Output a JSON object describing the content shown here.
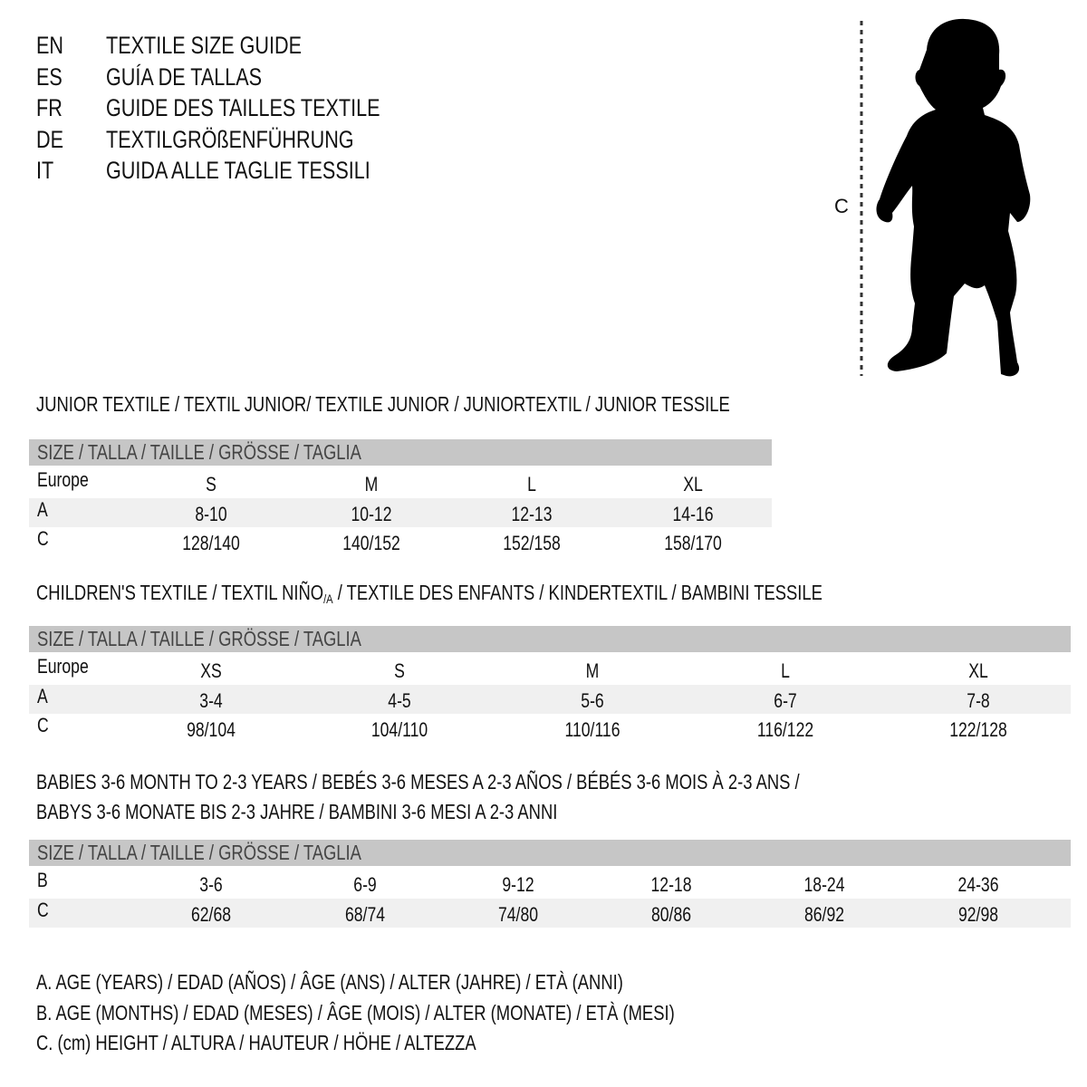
{
  "header": {
    "languages": [
      {
        "code": "EN",
        "title": "TEXTILE SIZE GUIDE"
      },
      {
        "code": "ES",
        "title": "GUÍA DE TALLAS"
      },
      {
        "code": "FR",
        "title": "GUIDE DES TAILLES TEXTILE"
      },
      {
        "code": "DE",
        "title": "TEXTILGRÖßENFÜHRUNG"
      },
      {
        "code": "IT",
        "title": "GUIDA ALLE TAGLIE TESSILI"
      }
    ]
  },
  "figure": {
    "measure_label": "C",
    "icon": "child-silhouette"
  },
  "colors": {
    "header_row": "#c6c6c6",
    "alt_row": "#f0f0f0",
    "text": "#111111"
  },
  "sections": [
    {
      "title": "JUNIOR TEXTILE / TEXTIL JUNIOR/ TEXTILE JUNIOR / JUNIORTEXTIL / JUNIOR TESSILE",
      "size_header": "SIZE / TALLA / TAILLE / GRÖSSE / TAGLIA",
      "rows": [
        {
          "label": "Europe",
          "values": [
            "S",
            "M",
            "L",
            "XL"
          ]
        },
        {
          "label": "A",
          "values": [
            "8-10",
            "10-12",
            "12-13",
            "14-16"
          ]
        },
        {
          "label": "C",
          "values": [
            "128/140",
            "140/152",
            "152/158",
            "158/170"
          ]
        }
      ]
    },
    {
      "title_parts": [
        "CHILDREN'S TEXTILE / TEXTIL NIÑO",
        "/A",
        " / TEXTILE DES ENFANTS / KINDERTEXTIL / BAMBINI TESSILE"
      ],
      "size_header": "SIZE / TALLA / TAILLE / GRÖSSE / TAGLIA",
      "rows": [
        {
          "label": "Europe",
          "values": [
            "XS",
            "S",
            "M",
            "L",
            "XL"
          ]
        },
        {
          "label": "A",
          "values": [
            "3-4",
            "4-5",
            "5-6",
            "6-7",
            "7-8"
          ]
        },
        {
          "label": "C",
          "values": [
            "98/104",
            "104/110",
            "110/116",
            "116/122",
            "122/128"
          ]
        }
      ]
    },
    {
      "title_lines": [
        "BABIES 3-6 MONTH TO 2-3 YEARS / BEBÉS 3-6 MESES A 2-3 AÑOS / BÉBÉS 3-6 MOIS À 2-3 ANS /",
        "BABYS 3-6 MONATE BIS 2-3 JAHRE / BAMBINI 3-6 MESI A 2-3 ANNI"
      ],
      "size_header": "SIZE / TALLA / TAILLE / GRÖSSE / TAGLIA",
      "rows": [
        {
          "label": "B",
          "values": [
            "3-6",
            "6-9",
            "9-12",
            "12-18",
            "18-24",
            "24-36"
          ]
        },
        {
          "label": "C",
          "values": [
            "62/68",
            "68/74",
            "74/80",
            "80/86",
            "86/92",
            "92/98"
          ]
        }
      ]
    }
  ],
  "legend": [
    "A. AGE (YEARS) / EDAD (AÑOS) / ÂGE (ANS) / ALTER (JAHRE) / ETÀ (ANNI)",
    "B. AGE (MONTHS) / EDAD (MESES) / ÂGE (MOIS) / ALTER (MONATE) / ETÀ (MESI)",
    "C. (cm) HEIGHT / ALTURA / HAUTEUR / HÖHE / ALTEZZA"
  ]
}
